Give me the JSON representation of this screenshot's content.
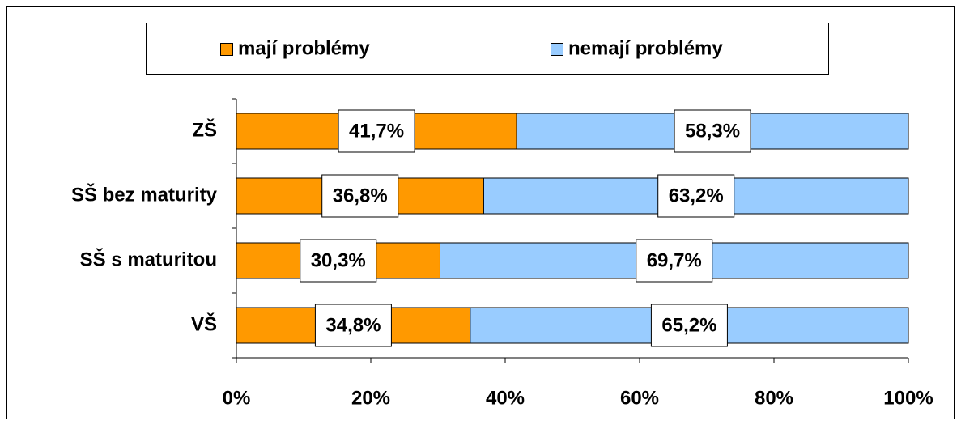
{
  "chart_data": {
    "type": "stacked_barh",
    "categories": [
      "ZŠ",
      "SŠ bez maturity",
      "SŠ s maturitou",
      "VŠ"
    ],
    "series": [
      {
        "name": "mají problémy",
        "color": "#ff9900",
        "values": [
          41.7,
          36.8,
          30.3,
          34.8
        ],
        "value_labels": [
          "41,7%",
          "36,8%",
          "30,3%",
          "34,8%"
        ]
      },
      {
        "name": "nemají problémy",
        "color": "#99ccff",
        "values": [
          58.3,
          63.2,
          69.7,
          65.2
        ],
        "value_labels": [
          "58,3%",
          "63,2%",
          "69,7%",
          "65,2%"
        ]
      }
    ],
    "xlim": [
      0,
      100
    ],
    "xticks": [
      {
        "value": 0,
        "label": "0%"
      },
      {
        "value": 20,
        "label": "20%"
      },
      {
        "value": 40,
        "label": "40%"
      },
      {
        "value": 60,
        "label": "60%"
      },
      {
        "value": 80,
        "label": "80%"
      },
      {
        "value": 100,
        "label": "100%"
      }
    ],
    "legend": "top"
  }
}
